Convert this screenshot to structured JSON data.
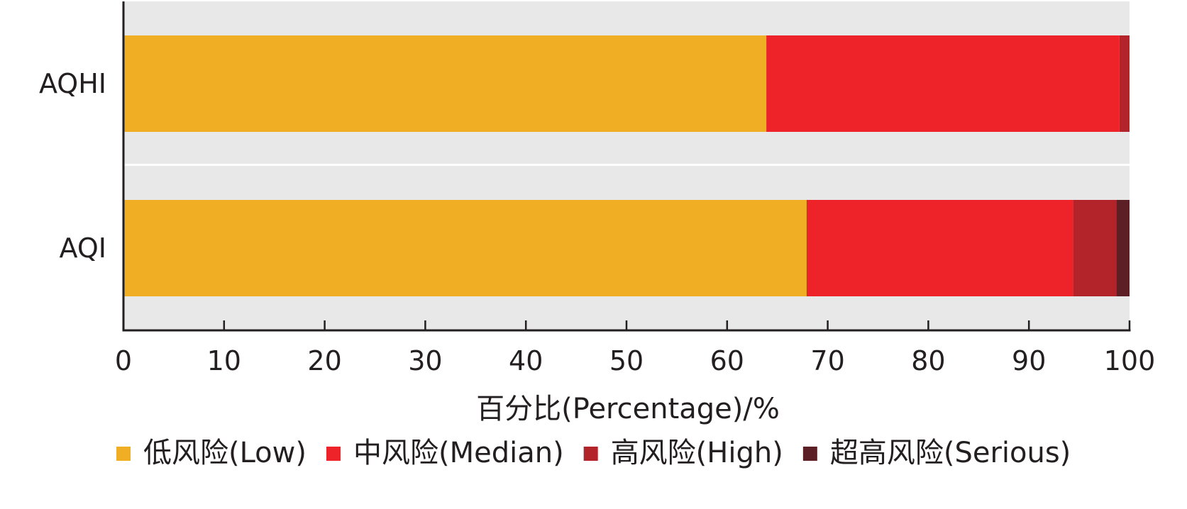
{
  "chart_data": {
    "type": "bar",
    "orientation": "horizontal",
    "stacked": true,
    "categories": [
      "AQHI",
      "AQI"
    ],
    "series": [
      {
        "name": "低风险(Low)",
        "color": "#f0ae24",
        "values": [
          63.9,
          67.9
        ]
      },
      {
        "name": "中风险(Median)",
        "color": "#ee232a",
        "values": [
          35.1,
          26.5
        ]
      },
      {
        "name": "高风险(High)",
        "color": "#b2232a",
        "values": [
          1.0,
          4.3
        ]
      },
      {
        "name": "超高风险(Serious)",
        "color": "#5c1f25",
        "values": [
          0.0,
          1.3
        ]
      }
    ],
    "xlabel": "百分比(Percentage)/%",
    "ylabel": "",
    "xlim": [
      0,
      100
    ],
    "xticks": [
      0,
      10,
      20,
      30,
      40,
      50,
      60,
      70,
      80,
      90,
      100
    ],
    "grid": false,
    "band_background": "#e8e8e8",
    "legend_position": "bottom"
  }
}
